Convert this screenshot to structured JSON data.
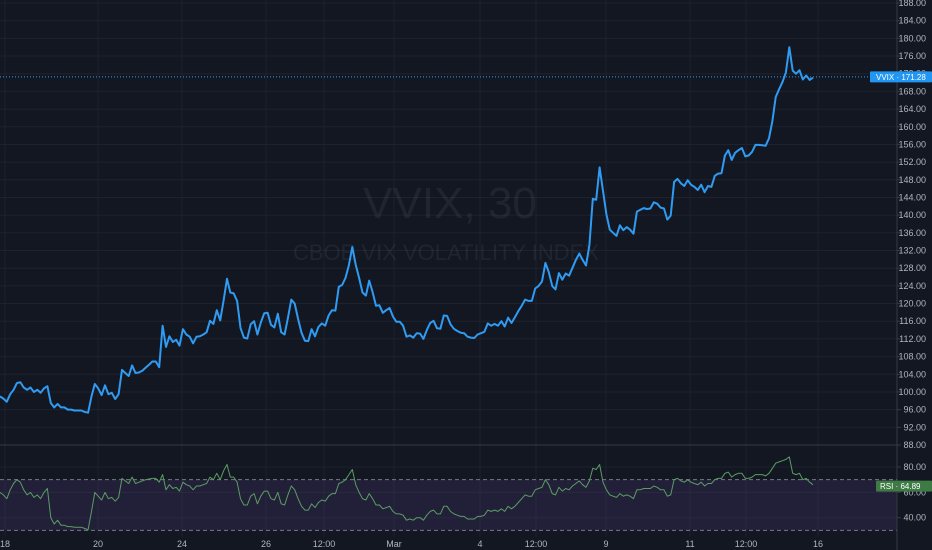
{
  "chart_data": [
    {
      "type": "line",
      "title": "VVIX, 30",
      "subtitle": "CBOE VIX VOLATILITY INDEX",
      "ylim": [
        86,
        190
      ],
      "y_ticks": [
        88,
        92,
        96,
        100,
        104,
        108,
        112,
        116,
        120,
        124,
        128,
        132,
        136,
        140,
        144,
        148,
        152,
        156,
        160,
        164,
        168,
        172,
        176,
        180,
        184,
        188
      ],
      "x_ticks": [
        "18",
        "20",
        "24",
        "26",
        "12:00",
        "Mar",
        "4",
        "12:00",
        "9",
        "11",
        "12:00",
        "16"
      ],
      "grid": true,
      "last_value": {
        "label": "VVIX",
        "value": "171.28"
      },
      "series": [
        {
          "name": "VVIX",
          "color": "#2f9bf2",
          "values": [
            99,
            98.5,
            97.8,
            99.5,
            100.5,
            102,
            102.2,
            101,
            100.5,
            101,
            100,
            100.5,
            99.8,
            100.8,
            101.3,
            97.5,
            96.5,
            97.3,
            96.5,
            96.5,
            96,
            96,
            95.8,
            95.8,
            95.8,
            95.5,
            95.3,
            99,
            101.8,
            100.8,
            99.3,
            101.5,
            99.5,
            99.8,
            98.4,
            99.5,
            105,
            104.3,
            103.6,
            106,
            104.3,
            104.4,
            104.8,
            105.5,
            106.2,
            106.9,
            106.9,
            105.6,
            115,
            110.2,
            112.6,
            111.3,
            111.8,
            110.5,
            114.2,
            113,
            112.5,
            111,
            112.5,
            112.6,
            113,
            113.5,
            116.1,
            115.4,
            118.5,
            116.2,
            120.7,
            125.6,
            122.5,
            122.3,
            120.6,
            114.5,
            112.3,
            112.1,
            115.3,
            116,
            113,
            115.7,
            117.8,
            117.9,
            115.2,
            114.6,
            117.7,
            113.5,
            113,
            116.7,
            120.9,
            120,
            116.5,
            113.4,
            111.6,
            111.5,
            114.2,
            112.6,
            114.7,
            115.5,
            115,
            117.3,
            118.5,
            118.4,
            123.8,
            124.2,
            125.8,
            128.7,
            132.8,
            128.8,
            125.8,
            122.5,
            121.8,
            125.2,
            122.6,
            119.5,
            119.6,
            117.9,
            118.5,
            119,
            117.1,
            115.9,
            115.9,
            115,
            112.5,
            112.8,
            112.3,
            113.3,
            113.2,
            112,
            114,
            115.6,
            116.1,
            114.4,
            114.3,
            117.3,
            117.2,
            115.3,
            114.3,
            113.8,
            113.4,
            113.3,
            112.5,
            112.3,
            112.2,
            113,
            113.3,
            113.6,
            115.5,
            115,
            115.4,
            115,
            116,
            114.8,
            116.8,
            115.6,
            116.9,
            118.3,
            119.5,
            120.9,
            120.6,
            120.6,
            123.4,
            124,
            125,
            129.2,
            127.1,
            124,
            123.2,
            126.9,
            125.4,
            126.8,
            126.3,
            128.1,
            129.9,
            131.3,
            129.9,
            128.6,
            133.2,
            143.7,
            143.5,
            150.8,
            145.5,
            140.2,
            136.7,
            136,
            135.3,
            137.7,
            136.6,
            137.3,
            136.7,
            135.8,
            140.8,
            141.2,
            141.6,
            141.4,
            141.5,
            142.9,
            142.6,
            141.7,
            141.5,
            139,
            139.9,
            147.5,
            148.2,
            147.2,
            146.6,
            147.9,
            146.9,
            146.4,
            145.7,
            146.9,
            145.2,
            146.6,
            146.4,
            148.9,
            149.4,
            149.5,
            153.5,
            154.7,
            152.5,
            154.1,
            154.7,
            155.2,
            153.3,
            153.5,
            154.3,
            155.9,
            155.9,
            155.8,
            155.7,
            157.4,
            161.3,
            166.7,
            168.5,
            170.1,
            172.3,
            178,
            172.7,
            172,
            172.8,
            170.7,
            171.6,
            170.6,
            171.1
          ]
        }
      ]
    },
    {
      "type": "line",
      "title": "",
      "ylim": [
        30,
        90
      ],
      "y_ticks": [
        40,
        60,
        80
      ],
      "overbought": 70,
      "oversold": 30,
      "last_value": {
        "label": "RSI",
        "value": "64.89"
      },
      "series": [
        {
          "name": "RSI",
          "color": "#5b9e63",
          "values": [
            60,
            58,
            55,
            62,
            67,
            70,
            68,
            62,
            58,
            60,
            56,
            58,
            55,
            60,
            63,
            40,
            35,
            38,
            34,
            34,
            33,
            33,
            32.5,
            32.5,
            32.5,
            31.5,
            30.5,
            45,
            60,
            57,
            54,
            60,
            55,
            56,
            53,
            56,
            71,
            69,
            67,
            72,
            67,
            68,
            69,
            70,
            70.5,
            71,
            71,
            68,
            74,
            62,
            66,
            63,
            64,
            61,
            68,
            66,
            65,
            62,
            65,
            65,
            66,
            67,
            72,
            70,
            75,
            70,
            77,
            82,
            72,
            72,
            68,
            55,
            50,
            50,
            57,
            59,
            51,
            57,
            61,
            61,
            55,
            54,
            60,
            51,
            50,
            58,
            65,
            62,
            55,
            49,
            46,
            46,
            51,
            48,
            52,
            54,
            53,
            57,
            59,
            59,
            67,
            68,
            70,
            74,
            78,
            66,
            60,
            55,
            54,
            59,
            55,
            50,
            50,
            47,
            48,
            49,
            45,
            43,
            43,
            42,
            38,
            39,
            38,
            40,
            40,
            38,
            42,
            45,
            46,
            43,
            43,
            49,
            49,
            45,
            43,
            42,
            41,
            41,
            39,
            39,
            39,
            41,
            41,
            42,
            46,
            45,
            46,
            45,
            47,
            45,
            49,
            47,
            49,
            52,
            55,
            58,
            57,
            57,
            62,
            63,
            64,
            70,
            66,
            59,
            58,
            64,
            61,
            63,
            62,
            65,
            67,
            69,
            66,
            64,
            69,
            79,
            78,
            82,
            68,
            62,
            58,
            57,
            56,
            59,
            57,
            58,
            57,
            55,
            62,
            62,
            63,
            63,
            63,
            65,
            64,
            62,
            62,
            57,
            58,
            70,
            71,
            69,
            68,
            70,
            68,
            67,
            66,
            68,
            65,
            67,
            67,
            70,
            71,
            71,
            75,
            76,
            72,
            74,
            75,
            75,
            71,
            71,
            72,
            74,
            74,
            74,
            73,
            75,
            79,
            83,
            84,
            85,
            86,
            88,
            75,
            74,
            75,
            70,
            71,
            68,
            66
          ]
        }
      ]
    }
  ]
}
